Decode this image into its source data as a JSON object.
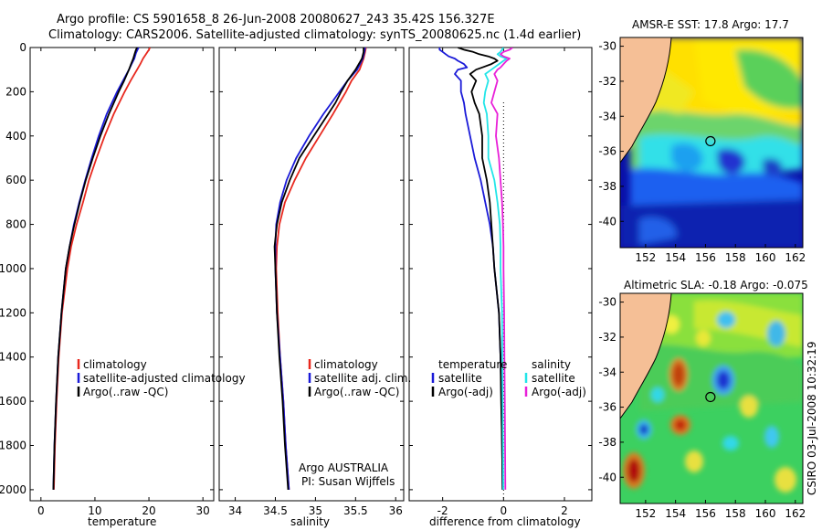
{
  "header": {
    "line1": "Argo profile: CS 5901658_8 26-Jun-2008 20080627_243 35.42S 156.327E",
    "line2": "Climatology: CARS2006. Satellite-adjusted climatology: synTS_20080625.nc (1.4d earlier)"
  },
  "colors": {
    "climatology": "#e8281e",
    "satellite": "#1a1ad8",
    "argo": "#000000",
    "salinity_satellite": "#22e5e8",
    "salinity_argo": "#e820d8",
    "land": "#f5bf96"
  },
  "chart_data": [
    {
      "type": "line",
      "panel": "temperature",
      "xlabel": "temperature",
      "ylabel": "",
      "xlim": [
        -2,
        32
      ],
      "ylim": [
        2050,
        0
      ],
      "xticks": [
        0,
        10,
        20,
        30
      ],
      "yticks": [
        0,
        200,
        400,
        600,
        800,
        1000,
        1200,
        1400,
        1600,
        1800,
        2000
      ],
      "legend": [
        "climatology",
        "satellite-adjusted climatology",
        "Argo(..raw -QC)"
      ],
      "legend_position": "lower-right",
      "depth": [
        0,
        10,
        25,
        50,
        75,
        100,
        150,
        200,
        300,
        400,
        500,
        600,
        700,
        800,
        900,
        1000,
        1200,
        1400,
        1600,
        1800,
        2000
      ],
      "series": [
        {
          "name": "climatology",
          "color": "#e8281e",
          "values": [
            20.2,
            20.0,
            19.6,
            18.9,
            18.4,
            17.8,
            16.6,
            15.5,
            13.5,
            11.8,
            10.3,
            8.9,
            7.8,
            6.6,
            5.6,
            4.9,
            3.9,
            3.3,
            2.9,
            2.6,
            2.4
          ]
        },
        {
          "name": "satellite-adjusted climatology",
          "color": "#1a1ad8",
          "values": [
            18.1,
            17.9,
            17.6,
            17.3,
            16.8,
            16.3,
            15.2,
            14.1,
            12.2,
            10.7,
            9.4,
            8.2,
            7.1,
            6.1,
            5.3,
            4.6,
            3.8,
            3.2,
            2.8,
            2.5,
            2.3
          ]
        },
        {
          "name": "Argo(..raw -QC)",
          "color": "#000000",
          "values": [
            17.8,
            17.6,
            17.4,
            17.1,
            16.7,
            16.3,
            15.4,
            14.4,
            12.6,
            11.0,
            9.6,
            8.3,
            7.2,
            6.2,
            5.3,
            4.6,
            3.8,
            3.2,
            2.8,
            2.5,
            2.3
          ]
        }
      ]
    },
    {
      "type": "line",
      "panel": "salinity",
      "xlabel": "salinity",
      "xlim": [
        33.8,
        36.1
      ],
      "ylim": [
        2050,
        0
      ],
      "xticks": [
        34,
        34.5,
        35,
        35.5,
        36
      ],
      "legend": [
        "climatology",
        "satellite adj. clim.",
        "Argo(..raw -QC)"
      ],
      "legend_position": "lower-right",
      "annotation": [
        "Argo AUSTRALIA",
        "PI: Susan Wijffels"
      ],
      "depth": [
        0,
        20,
        50,
        100,
        150,
        200,
        250,
        300,
        400,
        500,
        600,
        700,
        800,
        900,
        1000,
        1200,
        1400,
        1600,
        1800,
        2000
      ],
      "series": [
        {
          "name": "climatology",
          "color": "#e8281e",
          "values": [
            35.63,
            35.62,
            35.6,
            35.55,
            35.45,
            35.38,
            35.3,
            35.22,
            35.05,
            34.88,
            34.74,
            34.62,
            34.55,
            34.52,
            34.51,
            34.53,
            34.56,
            34.6,
            34.63,
            34.67
          ]
        },
        {
          "name": "satellite adj. clim.",
          "color": "#1a1ad8",
          "values": [
            35.62,
            35.61,
            35.59,
            35.52,
            35.4,
            35.3,
            35.2,
            35.1,
            34.92,
            34.76,
            34.64,
            34.56,
            34.51,
            34.5,
            34.5,
            34.52,
            34.56,
            34.6,
            34.63,
            34.67
          ]
        },
        {
          "name": "Argo(..raw -QC)",
          "color": "#000000",
          "values": [
            35.6,
            35.6,
            35.58,
            35.5,
            35.4,
            35.32,
            35.25,
            35.16,
            34.98,
            34.8,
            34.68,
            34.58,
            34.52,
            34.49,
            34.5,
            34.52,
            34.55,
            34.59,
            34.62,
            34.66
          ]
        }
      ]
    },
    {
      "type": "line",
      "panel": "difference",
      "xlabel": "difference from climatology",
      "xlim": [
        -3.1,
        2.9
      ],
      "ylim": [
        2050,
        0
      ],
      "xticks": [
        -2,
        0,
        2
      ],
      "legend": [
        "temperature",
        "satellite",
        "Argo(-adj)",
        "salinity",
        "satellite",
        "Argo(-adj)"
      ],
      "legend_position": "lower-center",
      "depth": [
        0,
        10,
        20,
        30,
        40,
        50,
        60,
        75,
        90,
        100,
        120,
        150,
        200,
        250,
        300,
        400,
        500,
        600,
        700,
        800,
        900,
        1000,
        1200,
        1400,
        1600,
        1800,
        2000
      ],
      "series": [
        {
          "name": "temperature satellite",
          "color": "#1a1ad8",
          "values": [
            -2.1,
            -2.1,
            -2.0,
            -1.9,
            -1.8,
            -1.6,
            -1.5,
            -1.3,
            -1.2,
            -1.5,
            -1.6,
            -1.4,
            -1.4,
            -1.3,
            -1.25,
            -1.1,
            -0.95,
            -0.75,
            -0.6,
            -0.45,
            -0.35,
            -0.3,
            -0.15,
            -0.1,
            -0.07,
            -0.05,
            -0.03
          ]
        },
        {
          "name": "temperature Argo(-adj)",
          "color": "#000000",
          "values": [
            -1.5,
            -1.3,
            -1.0,
            -0.8,
            -0.5,
            -0.3,
            -0.2,
            -0.4,
            -0.7,
            -0.9,
            -1.1,
            -0.9,
            -1.05,
            -0.95,
            -0.8,
            -0.7,
            -0.7,
            -0.55,
            -0.45,
            -0.4,
            -0.35,
            -0.3,
            -0.15,
            -0.1,
            -0.08,
            -0.05,
            -0.03
          ]
        },
        {
          "name": "salinity satellite",
          "color": "#22e5e8",
          "values": [
            0,
            -0.05,
            -0.1,
            -0.2,
            -0.1,
            0.1,
            0.0,
            -0.15,
            -0.3,
            -0.4,
            -0.6,
            -0.5,
            -0.6,
            -0.65,
            -0.55,
            -0.5,
            -0.5,
            -0.3,
            -0.2,
            -0.12,
            -0.1,
            -0.1,
            -0.05,
            -0.04,
            -0.03,
            -0.02,
            -0.01
          ]
        },
        {
          "name": "salinity Argo(-adj)",
          "color": "#e820d8",
          "values": [
            0.3,
            0.2,
            0.0,
            -0.1,
            0.0,
            0.2,
            0.1,
            0.0,
            -0.1,
            -0.2,
            -0.3,
            -0.2,
            -0.3,
            -0.4,
            -0.2,
            -0.25,
            -0.15,
            -0.1,
            -0.05,
            -0.02,
            0.0,
            0.0,
            0.02,
            0.03,
            0.04,
            0.05,
            0.06
          ]
        }
      ]
    },
    {
      "type": "heatmap",
      "panel": "sst_map",
      "title": "AMSR-E SST: 17.8 Argo: 17.7",
      "xlim": [
        150.3,
        162.5
      ],
      "ylim": [
        -41.5,
        -29.5
      ],
      "xticks": [
        152,
        154,
        156,
        158,
        160,
        162
      ],
      "yticks": [
        -30,
        -32,
        -34,
        -36,
        -38,
        -40
      ],
      "marker": {
        "lon": 156.33,
        "lat": -35.42
      }
    },
    {
      "type": "heatmap",
      "panel": "sla_map",
      "title": "Altimetric SLA: -0.18 Argo: -0.075",
      "xlim": [
        150.3,
        162.5
      ],
      "ylim": [
        -41.5,
        -29.5
      ],
      "xticks": [
        152,
        154,
        156,
        158,
        160,
        162
      ],
      "yticks": [
        -30,
        -32,
        -34,
        -36,
        -38,
        -40
      ],
      "marker": {
        "lon": 156.33,
        "lat": -35.42
      }
    }
  ],
  "footer": {
    "stamp": "CSIRO 03-Jul-2008 10:32:19"
  }
}
